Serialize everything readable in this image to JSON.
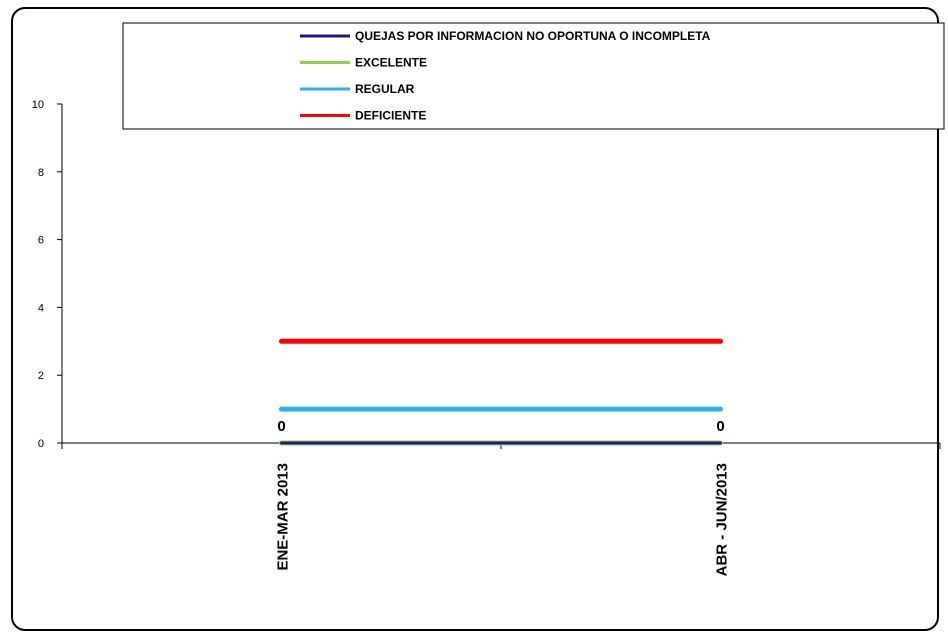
{
  "chart_data": {
    "type": "line",
    "categories": [
      "ENE-MAR 2013",
      "ABR - JUN/2013"
    ],
    "ylim": [
      0,
      10
    ],
    "yticks": [
      "0",
      "2",
      "4",
      "6",
      "8",
      "10"
    ],
    "grid": false,
    "legend_position": "top",
    "series": [
      {
        "name": "QUEJAS POR INFORMACION NO OPORTUNA O INCOMPLETA",
        "values": [
          0,
          0
        ],
        "color": "#1f1a7a",
        "data_labels": [
          "0",
          "0"
        ]
      },
      {
        "name": "EXCELENTE",
        "values": [
          0,
          0
        ],
        "color": "#92d050"
      },
      {
        "name": "REGULAR",
        "values": [
          1,
          1
        ],
        "color": "#2eb2e6"
      },
      {
        "name": "DEFICIENTE",
        "values": [
          3,
          3
        ],
        "color": "#ff0000"
      }
    ]
  }
}
